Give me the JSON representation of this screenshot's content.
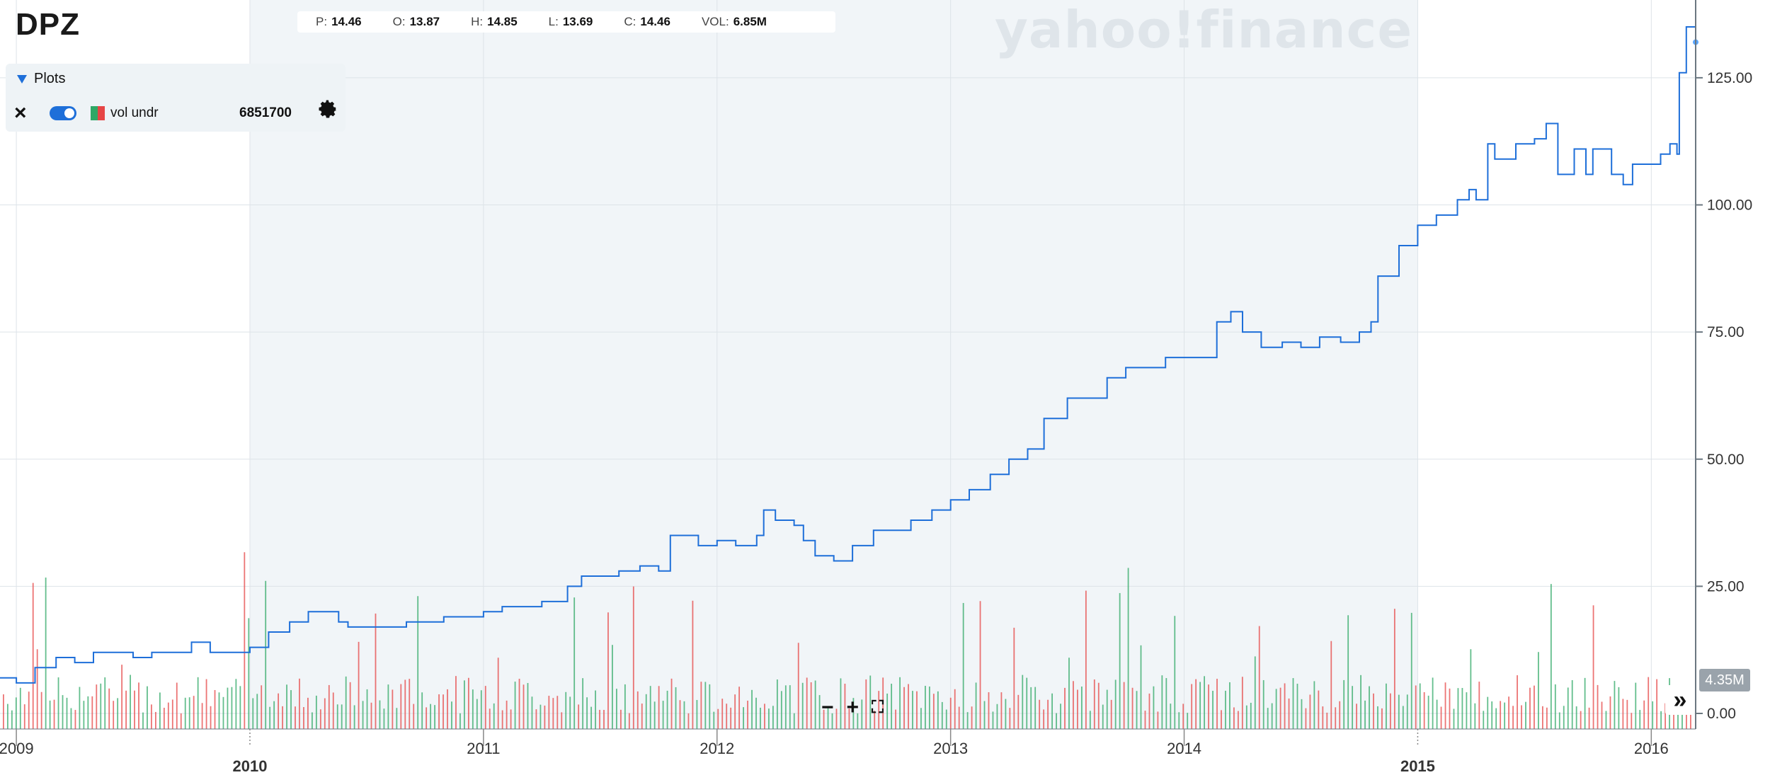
{
  "header": {
    "ticker": "DPZ",
    "watermark": "yahoo!finance"
  },
  "ohlc": [
    {
      "key": "P:",
      "value": "14.46"
    },
    {
      "key": "O:",
      "value": "13.87"
    },
    {
      "key": "H:",
      "value": "14.85"
    },
    {
      "key": "L:",
      "value": "13.69"
    },
    {
      "key": "C:",
      "value": "14.46"
    },
    {
      "key": "VOL:",
      "value": "6.85M"
    }
  ],
  "plots_panel": {
    "title": "Plots",
    "row_label": "vol undr",
    "row_value": "6851700",
    "toggle_on": true
  },
  "volume_badge": "4.35M",
  "controls": {
    "zoom_out": "−",
    "zoom_in": "+",
    "reset": "⛶",
    "scroll_end": "»"
  },
  "colors": {
    "price_line": "#1e6fd9",
    "volume_up": "#2fa866",
    "volume_down": "#e64545",
    "shade": "#f1f5f8",
    "grid": "#dde3e8"
  },
  "chart_data": {
    "type": "line",
    "price_axis": {
      "ticks": [
        "0.00",
        "25.00",
        "50.00",
        "75.00",
        "100.00",
        "125.00"
      ],
      "min": 0,
      "max": 140
    },
    "time_axis": {
      "ticks": [
        {
          "label": "2009",
          "major": false
        },
        {
          "label": "2010",
          "major": true
        },
        {
          "label": "2011",
          "major": false
        },
        {
          "label": "2012",
          "major": false
        },
        {
          "label": "2013",
          "major": false
        },
        {
          "label": "2014",
          "major": false
        },
        {
          "label": "2015",
          "major": true
        },
        {
          "label": "2016",
          "major": false
        }
      ],
      "min_year": 2008.93,
      "max_year": 2016.19
    },
    "shaded_range": [
      2010.0,
      2015.0
    ],
    "series": [
      {
        "x": [
          2008.93,
          2009.0,
          2009.08,
          2009.17,
          2009.25,
          2009.33,
          2009.42,
          2009.5,
          2009.58,
          2009.67,
          2009.75,
          2009.83,
          2009.92,
          2010.0,
          2010.08,
          2010.17,
          2010.25,
          2010.33,
          2010.38,
          2010.42,
          2010.5,
          2010.58,
          2010.67,
          2010.75,
          2010.83,
          2010.92,
          2011.0,
          2011.08,
          2011.17,
          2011.25,
          2011.33,
          2011.36,
          2011.42,
          2011.5,
          2011.58,
          2011.67,
          2011.75,
          2011.8,
          2011.92,
          2012.0,
          2012.08,
          2012.17,
          2012.2,
          2012.25,
          2012.33,
          2012.37,
          2012.42,
          2012.5,
          2012.58,
          2012.67,
          2012.75,
          2012.83,
          2012.92,
          2013.0,
          2013.08,
          2013.17,
          2013.25,
          2013.33,
          2013.4,
          2013.5,
          2013.58,
          2013.67,
          2013.75,
          2013.83,
          2013.92,
          2014.0,
          2014.08,
          2014.14,
          2014.2,
          2014.25,
          2014.33,
          2014.42,
          2014.5,
          2014.58,
          2014.67,
          2014.75,
          2014.8,
          2014.83,
          2014.92,
          2015.0,
          2015.08,
          2015.17,
          2015.22,
          2015.25,
          2015.3,
          2015.33,
          2015.42,
          2015.5,
          2015.55,
          2015.6,
          2015.67,
          2015.72,
          2015.75,
          2015.83,
          2015.88,
          2015.92,
          2016.0,
          2016.04,
          2016.08,
          2016.11,
          2016.12,
          2016.15,
          2016.19
        ],
        "values": [
          7,
          6,
          9,
          11,
          10,
          12,
          12,
          11,
          12,
          12,
          14,
          12,
          12,
          13,
          16,
          18,
          20,
          20,
          18,
          17,
          17,
          17,
          18,
          18,
          19,
          19,
          20,
          21,
          21,
          22,
          22,
          25,
          27,
          27,
          28,
          29,
          28,
          35,
          33,
          34,
          33,
          35,
          40,
          38,
          37,
          34,
          31,
          30,
          33,
          36,
          36,
          38,
          40,
          42,
          44,
          47,
          50,
          52,
          58,
          62,
          62,
          66,
          68,
          68,
          70,
          70,
          70,
          77,
          79,
          75,
          72,
          73,
          72,
          74,
          73,
          75,
          77,
          86,
          92,
          96,
          98,
          101,
          103,
          101,
          112,
          109,
          112,
          113,
          116,
          106,
          111,
          106,
          111,
          106,
          104,
          108,
          108,
          110,
          112,
          110,
          126,
          135,
          132
        ]
      }
    ]
  }
}
